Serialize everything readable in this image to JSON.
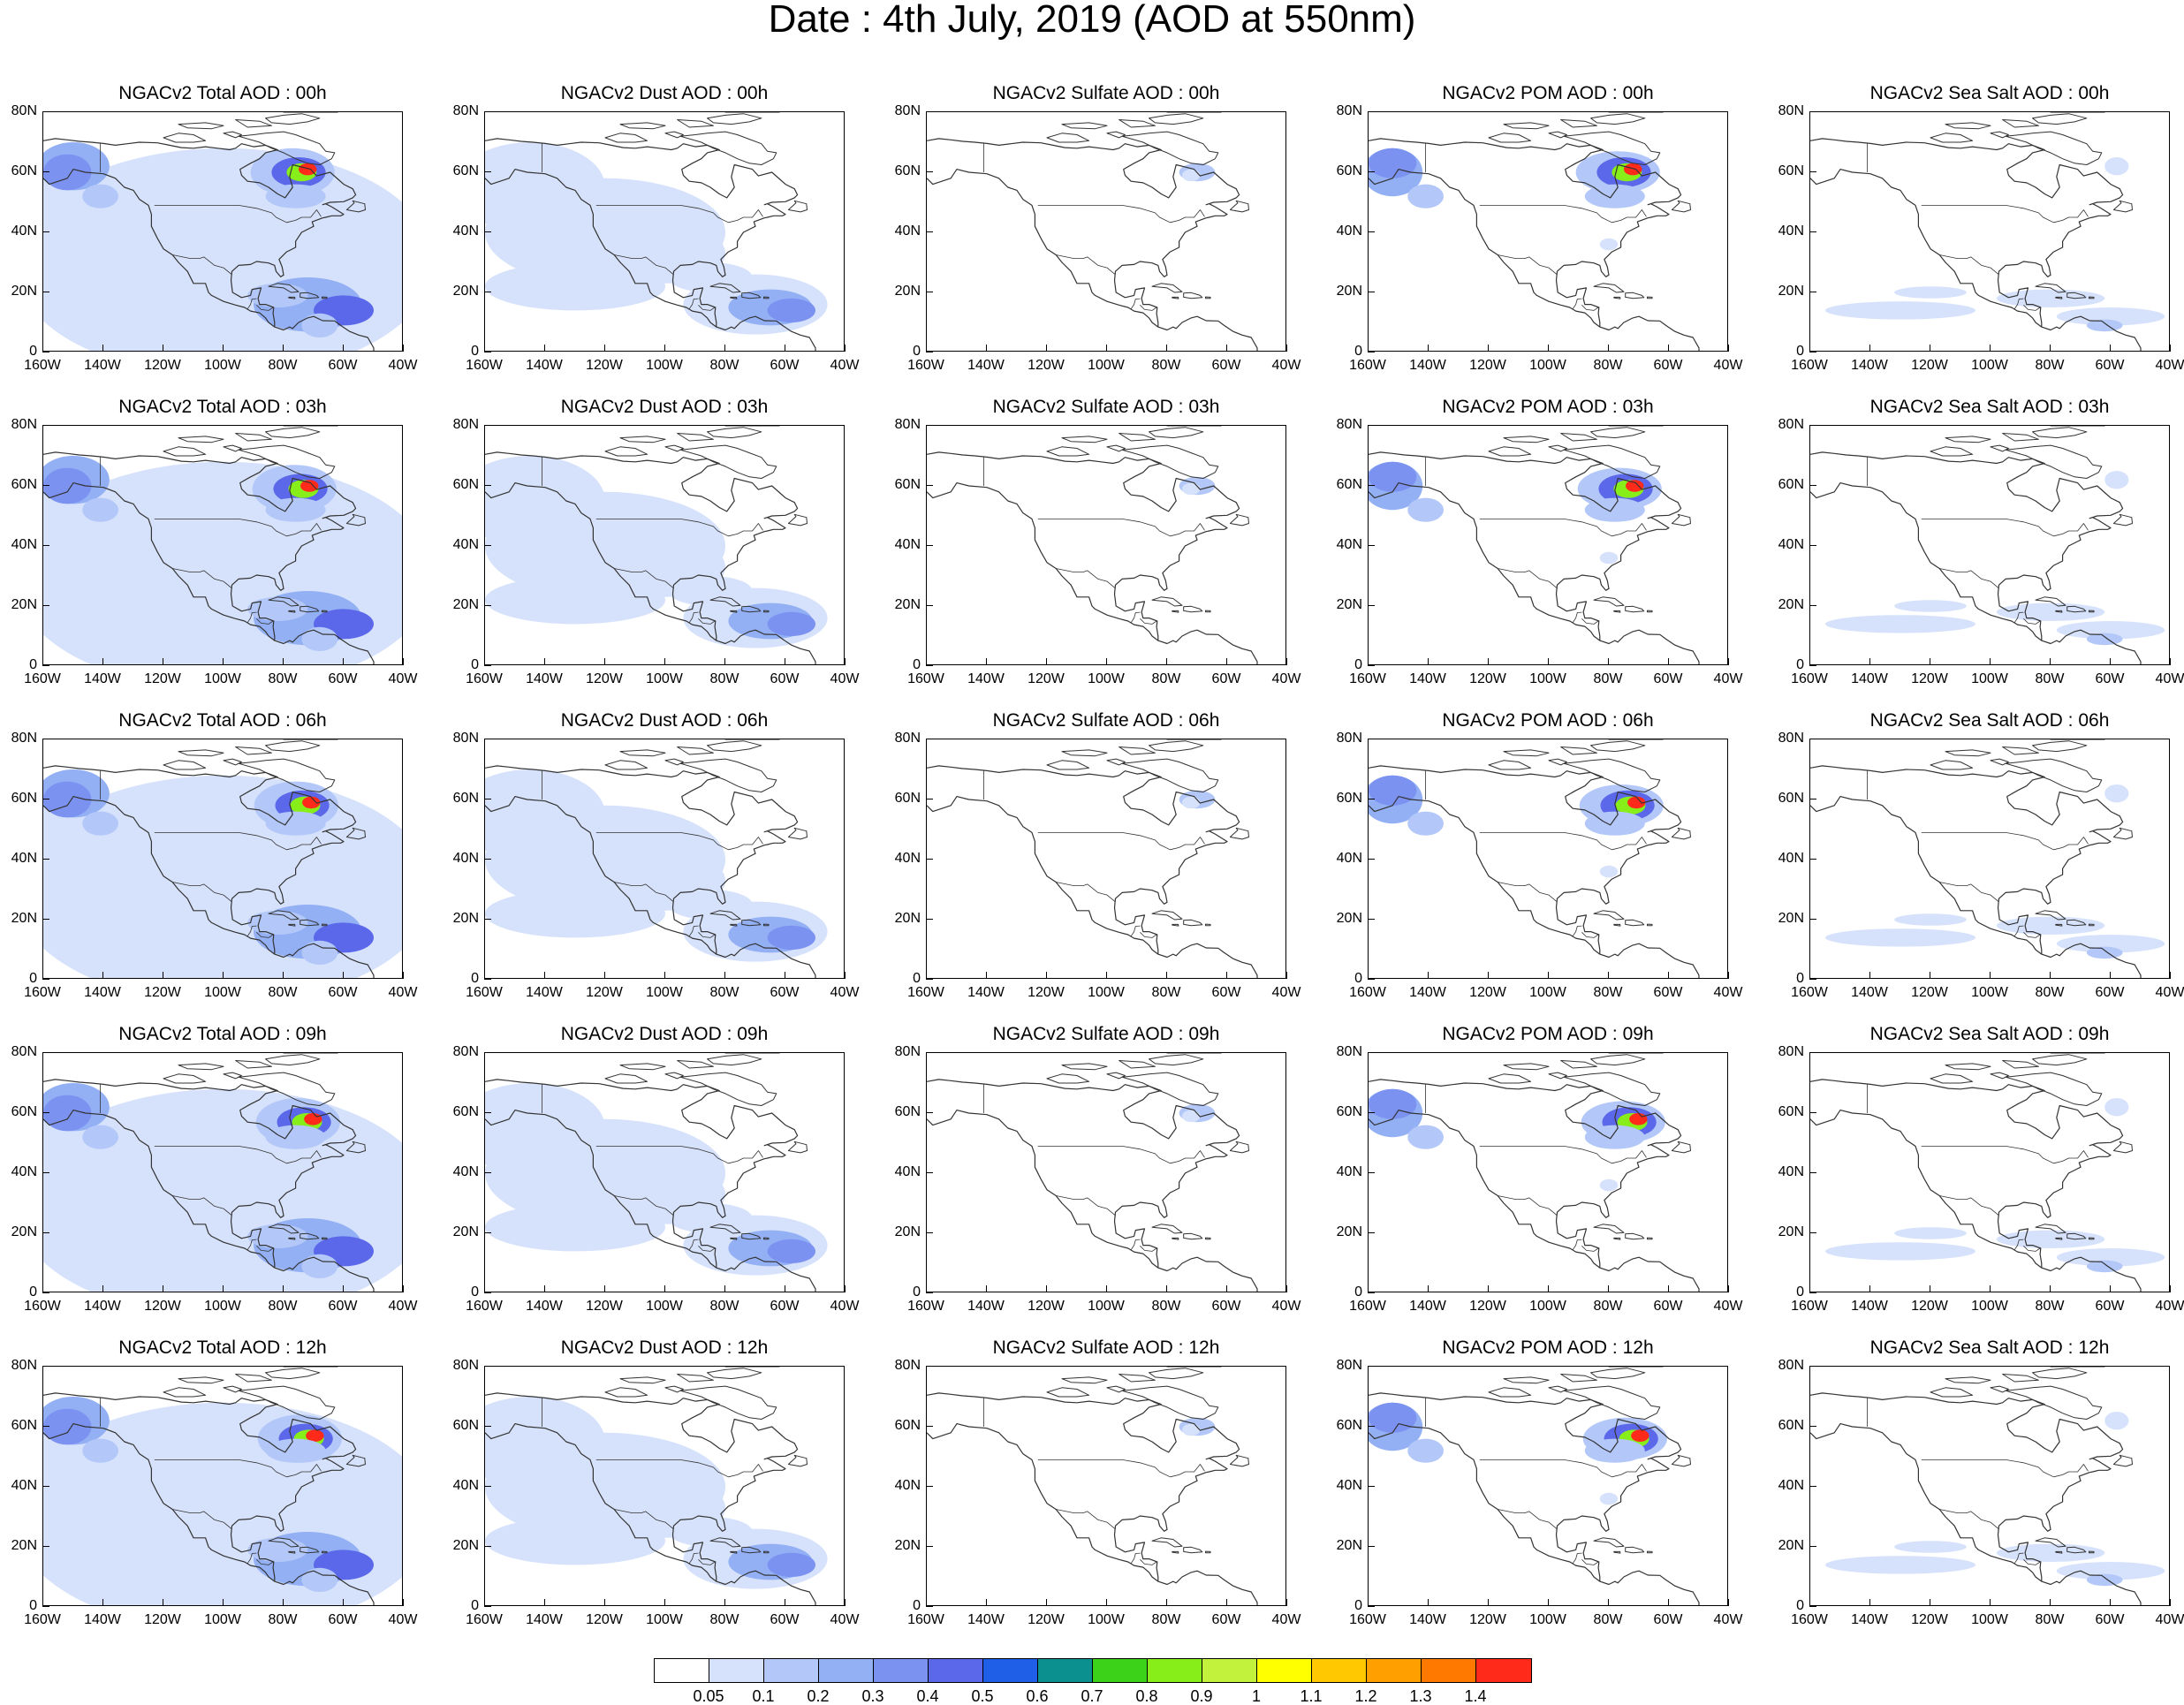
{
  "title": "Date : 4th July, 2019 (AOD at 550nm)",
  "panel_titles": [
    [
      "NGACv2 Total AOD : 00h",
      "NGACv2 Dust AOD : 00h",
      "NGACv2 Sulfate AOD : 00h",
      "NGACv2 POM AOD : 00h",
      "NGACv2 Sea Salt AOD : 00h"
    ],
    [
      "NGACv2 Total AOD : 03h",
      "NGACv2 Dust AOD : 03h",
      "NGACv2 Sulfate AOD : 03h",
      "NGACv2 POM AOD : 03h",
      "NGACv2 Sea Salt AOD : 03h"
    ],
    [
      "NGACv2 Total AOD : 06h",
      "NGACv2 Dust AOD : 06h",
      "NGACv2 Sulfate AOD : 06h",
      "NGACv2 POM AOD : 06h",
      "NGACv2 Sea Salt AOD : 06h"
    ],
    [
      "NGACv2 Total AOD : 09h",
      "NGACv2 Dust AOD : 09h",
      "NGACv2 Sulfate AOD : 09h",
      "NGACv2 POM AOD : 09h",
      "NGACv2 Sea Salt  AOD : 09h"
    ],
    [
      "NGACv2 Total AOD  : 12h",
      "NGACv2 Dust AOD : 12h",
      "NGACv2 Sulfate AOD : 12h",
      "NGACv2 POM  AOD : 12h",
      "NGACv2 Sea Salt  AOD : 12h"
    ]
  ],
  "y_tick_labels": [
    "80N",
    "60N",
    "40N",
    "20N",
    "0"
  ],
  "x_tick_labels": [
    "160W",
    "140W",
    "120W",
    "100W",
    "80W",
    "60W",
    "40W"
  ],
  "colorbar": {
    "labels": [
      "0.05",
      "0.1",
      "0.2",
      "0.3",
      "0.4",
      "0.5",
      "0.6",
      "0.7",
      "0.8",
      "0.9",
      "1",
      "1.1",
      "1.2",
      "1.3",
      "1.4"
    ],
    "colors": [
      "#ffffff",
      "#d6e2fb",
      "#b3c8f8",
      "#93b0f5",
      "#7c92f1",
      "#5c68ea",
      "#1f5fe8",
      "#0b8f8f",
      "#3cd21a",
      "#88ee1a",
      "#c2f23c",
      "#ffff00",
      "#ffc800",
      "#ffa000",
      "#ff7800",
      "#ff2a1a"
    ]
  },
  "colors": {
    "coastline": "#333333",
    "level1": "#d6e2fb",
    "level2": "#b3c8f8",
    "level3": "#93b0f5",
    "level4": "#7c92f1"
  },
  "map_extent": {
    "lon_min": -160,
    "lon_max": -40,
    "lat_min": 0,
    "lat_max": 80
  }
}
